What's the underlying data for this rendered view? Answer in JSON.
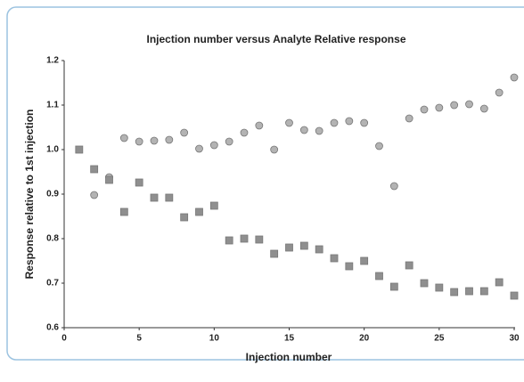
{
  "chart_data": {
    "type": "scatter",
    "title": "Injection number versus Analyte Relative response",
    "x_label": "Injection number",
    "y_label": "Response relative to 1st injection",
    "xlim": [
      0,
      30
    ],
    "xticks": [
      0,
      5,
      10,
      15,
      20,
      25,
      30
    ],
    "ylim": [
      0.6,
      1.2
    ],
    "yticks": [
      0.6,
      0.7,
      0.8,
      0.9,
      {
        "value": 1,
        "label": "1.0"
      },
      1.1,
      1.2
    ],
    "grid": false,
    "series": [
      {
        "marker": "circle",
        "color": "#b3b3b3",
        "x": [
          2,
          3,
          4,
          5,
          6,
          7,
          8,
          9,
          10,
          11,
          12,
          13,
          14,
          15,
          16,
          17,
          18,
          19,
          20,
          21,
          22,
          23,
          24,
          25,
          26,
          27,
          28,
          29,
          30
        ],
        "values": [
          0.898,
          0.938,
          1.026,
          1.018,
          1.02,
          1.022,
          1.038,
          1.002,
          1.01,
          1.018,
          1.038,
          1.054,
          1.0,
          1.06,
          1.044,
          1.042,
          1.06,
          1.064,
          1.06,
          1.008,
          0.918,
          1.07,
          1.09,
          1.094,
          1.1,
          1.102,
          1.092,
          1.128,
          1.162
        ]
      },
      {
        "marker": "square",
        "color": "#8f8f8f",
        "x": [
          1,
          2,
          3,
          4,
          5,
          6,
          7,
          8,
          9,
          10,
          11,
          12,
          13,
          14,
          15,
          16,
          17,
          18,
          19,
          20,
          21,
          22,
          23,
          24,
          25,
          26,
          27,
          28,
          29,
          30
        ],
        "values": [
          1.0,
          0.956,
          0.932,
          0.86,
          0.926,
          0.892,
          0.892,
          0.848,
          0.86,
          0.874,
          0.796,
          0.8,
          0.798,
          0.766,
          0.78,
          0.784,
          0.776,
          0.756,
          0.738,
          0.75,
          0.716,
          0.692,
          0.74,
          0.7,
          0.69,
          0.68,
          0.682,
          0.682,
          0.702,
          0.672
        ]
      }
    ]
  }
}
